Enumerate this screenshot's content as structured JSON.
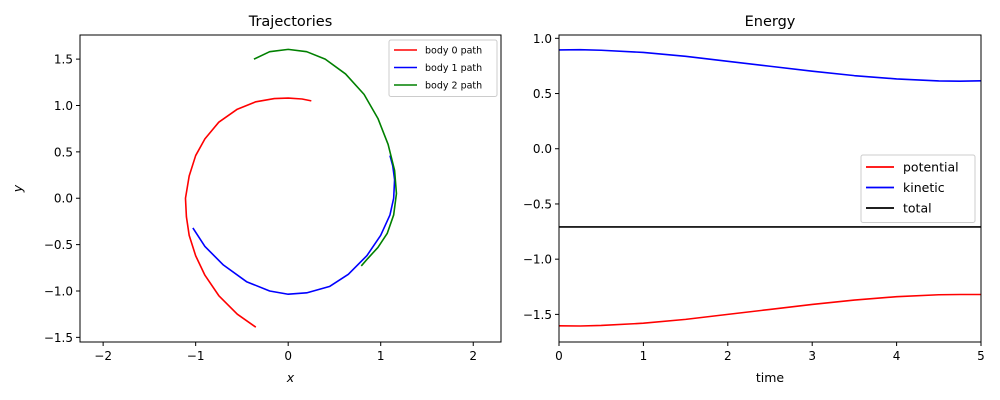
{
  "chart_data": [
    {
      "type": "line",
      "title": "Trajectories",
      "xlabel": "x",
      "ylabel": "y",
      "xlim": [
        -2.25,
        2.3
      ],
      "ylim": [
        -1.55,
        1.76
      ],
      "xticks": [
        -2,
        -1,
        0,
        1,
        2
      ],
      "xtick_labels": [
        "−2",
        "−1",
        "0",
        "1",
        "2"
      ],
      "yticks": [
        -1.5,
        -1.0,
        -0.5,
        0.0,
        0.5,
        1.0,
        1.5
      ],
      "ytick_labels": [
        "−1.5",
        "−1.0",
        "−0.5",
        "0.0",
        "0.5",
        "1.0",
        "1.5"
      ],
      "grid": false,
      "legend": "top-right",
      "series": [
        {
          "name": "body 0 path",
          "color": "#ff0000",
          "x": [
            -0.35,
            -0.55,
            -0.75,
            -0.9,
            -1.0,
            -1.07,
            -1.1,
            -1.11,
            -1.07,
            -1.0,
            -0.9,
            -0.75,
            -0.55,
            -0.35,
            -0.15,
            0.0,
            0.15,
            0.25
          ],
          "y": [
            -1.39,
            -1.25,
            -1.05,
            -0.83,
            -0.62,
            -0.4,
            -0.2,
            0.0,
            0.24,
            0.46,
            0.64,
            0.82,
            0.96,
            1.04,
            1.075,
            1.08,
            1.07,
            1.05
          ]
        },
        {
          "name": "body 1 path",
          "color": "#0000ff",
          "x": [
            -1.03,
            -0.9,
            -0.7,
            -0.45,
            -0.2,
            0.0,
            0.2,
            0.45,
            0.65,
            0.85,
            1.0,
            1.1,
            1.14,
            1.15,
            1.13,
            1.1
          ],
          "y": [
            -0.32,
            -0.52,
            -0.72,
            -0.9,
            -1.0,
            -1.035,
            -1.02,
            -0.95,
            -0.82,
            -0.62,
            -0.4,
            -0.18,
            0.0,
            0.2,
            0.35,
            0.46
          ]
        },
        {
          "name": "body 2 path",
          "color": "#008000",
          "x": [
            -0.37,
            -0.2,
            0.0,
            0.2,
            0.4,
            0.62,
            0.82,
            0.97,
            1.08,
            1.15,
            1.17,
            1.14,
            1.07,
            0.97,
            0.86,
            0.79
          ],
          "y": [
            1.5,
            1.58,
            1.605,
            1.58,
            1.5,
            1.34,
            1.12,
            0.86,
            0.58,
            0.3,
            0.05,
            -0.18,
            -0.38,
            -0.53,
            -0.65,
            -0.73
          ]
        }
      ]
    },
    {
      "type": "line",
      "title": "Energy",
      "xlabel": "time",
      "ylabel": "",
      "xlim": [
        0,
        5
      ],
      "ylim": [
        -1.75,
        1.03
      ],
      "xticks": [
        0,
        1,
        2,
        3,
        4,
        5
      ],
      "xtick_labels": [
        "0",
        "1",
        "2",
        "3",
        "4",
        "5"
      ],
      "yticks": [
        -1.5,
        -1.0,
        -0.5,
        0.0,
        0.5,
        1.0
      ],
      "ytick_labels": [
        "−1.5",
        "−1.0",
        "−0.5",
        "0.0",
        "0.5",
        "1.0"
      ],
      "grid": false,
      "legend": "center-right",
      "series": [
        {
          "name": "potential",
          "color": "#ff0000",
          "x": [
            0,
            0.25,
            0.5,
            1.0,
            1.5,
            2.0,
            2.5,
            3.0,
            3.5,
            4.0,
            4.5,
            4.75,
            5.0
          ],
          "y": [
            -1.603,
            -1.605,
            -1.6,
            -1.58,
            -1.545,
            -1.5,
            -1.455,
            -1.41,
            -1.37,
            -1.34,
            -1.322,
            -1.32,
            -1.32
          ]
        },
        {
          "name": "kinetic",
          "color": "#0000ff",
          "x": [
            0,
            0.25,
            0.5,
            1.0,
            1.5,
            2.0,
            2.5,
            3.0,
            3.5,
            4.0,
            4.5,
            4.75,
            5.0
          ],
          "y": [
            0.895,
            0.897,
            0.892,
            0.872,
            0.837,
            0.792,
            0.747,
            0.702,
            0.662,
            0.632,
            0.614,
            0.612,
            0.615
          ]
        },
        {
          "name": "total",
          "color": "#000000",
          "x": [
            0,
            5
          ],
          "y": [
            -0.708,
            -0.708
          ]
        }
      ]
    }
  ]
}
